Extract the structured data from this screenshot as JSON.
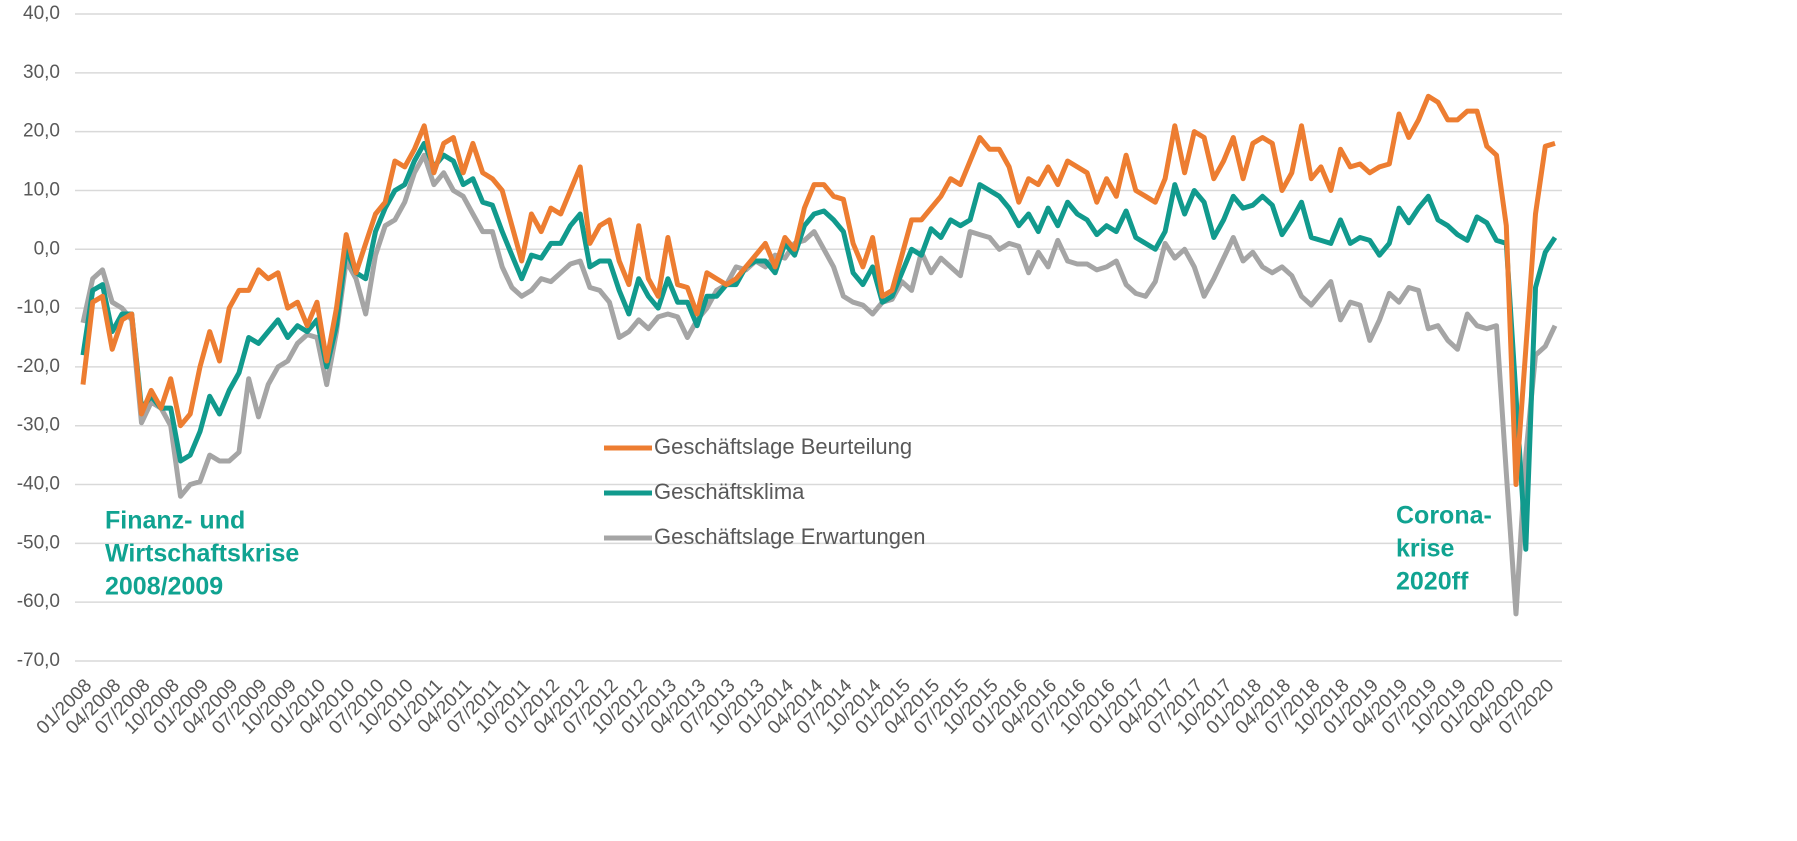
{
  "chart_data": {
    "type": "line",
    "categories": [
      "01/2008",
      null,
      null,
      "04/2008",
      null,
      null,
      "07/2008",
      null,
      null,
      "10/2008",
      null,
      null,
      "01/2009",
      null,
      null,
      "04/2009",
      null,
      null,
      "07/2009",
      null,
      null,
      "10/2009",
      null,
      null,
      "01/2010",
      null,
      null,
      "04/2010",
      null,
      null,
      "07/2010",
      null,
      null,
      "10/2010",
      null,
      null,
      "01/2011",
      null,
      null,
      "04/2011",
      null,
      null,
      "07/2011",
      null,
      null,
      "10/2011",
      null,
      null,
      "01/2012",
      null,
      null,
      "04/2012",
      null,
      null,
      "07/2012",
      null,
      null,
      "10/2012",
      null,
      null,
      "01/2013",
      null,
      null,
      "04/2013",
      null,
      null,
      "07/2013",
      null,
      null,
      "10/2013",
      null,
      null,
      "01/2014",
      null,
      null,
      "04/2014",
      null,
      null,
      "07/2014",
      null,
      null,
      "10/2014",
      null,
      null,
      "01/2015",
      null,
      null,
      "04/2015",
      null,
      null,
      "07/2015",
      null,
      null,
      "10/2015",
      null,
      null,
      "01/2016",
      null,
      null,
      "04/2016",
      null,
      null,
      "07/2016",
      null,
      null,
      "10/2016",
      null,
      null,
      "01/2017",
      null,
      null,
      "04/2017",
      null,
      null,
      "07/2017",
      null,
      null,
      "10/2017",
      null,
      null,
      "01/2018",
      null,
      null,
      "04/2018",
      null,
      null,
      "07/2018",
      null,
      null,
      "10/2018",
      null,
      null,
      "01/2019",
      null,
      null,
      "04/2019",
      null,
      null,
      "07/2019",
      null,
      null,
      "10/2019",
      null,
      null,
      "01/2020",
      null,
      null,
      "04/2020",
      null,
      null,
      "07/2020",
      null
    ],
    "series": [
      {
        "name": "Geschäftslage Beurteilung",
        "color": "#ed7d31",
        "values": [
          -23,
          -9,
          -8,
          -17,
          -12,
          -11,
          -28,
          -24,
          -27,
          -22,
          -30,
          -28,
          -20,
          -14,
          -19,
          -10,
          -7,
          -7,
          -3.5,
          -5,
          -4,
          -10,
          -9,
          -13,
          -9,
          -19,
          -10,
          2.5,
          -4,
          1,
          6,
          8,
          15,
          14,
          17,
          21,
          13,
          18,
          19,
          13,
          18,
          13,
          12,
          10,
          4,
          -2,
          6,
          3,
          7,
          6,
          10,
          14,
          1,
          4,
          5,
          -2,
          -6,
          4,
          -5,
          -8,
          2,
          -6,
          -6.5,
          -11,
          -4,
          -5,
          -6,
          -5,
          -3,
          -1,
          1,
          -3,
          2,
          0,
          7,
          11,
          11,
          9,
          8.5,
          1,
          -3,
          2,
          -8,
          -7,
          -1,
          5,
          5,
          7,
          9,
          12,
          11,
          15,
          19,
          17,
          17,
          14,
          8,
          12,
          11,
          14,
          11,
          15,
          14,
          13,
          8,
          12,
          9,
          16,
          10,
          9,
          8,
          12,
          21,
          13,
          20,
          19,
          12,
          15,
          19,
          12,
          18,
          19,
          18,
          10,
          13,
          21,
          12,
          14,
          10,
          17,
          14,
          14.5,
          13,
          14,
          14.5,
          23,
          19,
          22,
          26,
          25,
          22,
          22,
          23.5,
          23.5,
          17.5,
          16,
          4,
          -40,
          -17,
          6,
          17.5,
          18
        ]
      },
      {
        "name": "Geschäftsklima",
        "color": "#119a8d",
        "values": [
          -18,
          -7,
          -6,
          -14,
          -11,
          -11,
          -27,
          -25,
          -27,
          -27,
          -36,
          -35,
          -31,
          -25,
          -28,
          -24,
          -21,
          -15,
          -16,
          -14,
          -12,
          -15,
          -13,
          -14,
          -12,
          -20,
          -13,
          0,
          -4,
          -5,
          3,
          7,
          10,
          11,
          15,
          18,
          14,
          16,
          15,
          11,
          12,
          8,
          7.5,
          3,
          -1,
          -5,
          -1,
          -1.5,
          1,
          1,
          4,
          6,
          -3,
          -2,
          -2,
          -7,
          -11,
          -5,
          -8,
          -10,
          -5,
          -9,
          -9,
          -13,
          -8,
          -8,
          -6,
          -6,
          -3,
          -2,
          -2,
          -4,
          1,
          -1,
          4,
          6,
          6.5,
          5,
          3,
          -4,
          -6,
          -3,
          -9,
          -8,
          -4,
          0,
          -1,
          3.5,
          2,
          5,
          4,
          5,
          11,
          10,
          9,
          7,
          4,
          6,
          3,
          7,
          4,
          8,
          6,
          5,
          2.5,
          4,
          3,
          6.5,
          2,
          1,
          0,
          3,
          11,
          6,
          10,
          8,
          2,
          5,
          9,
          7,
          7.5,
          9,
          7.5,
          2.5,
          5,
          8,
          2,
          1.5,
          1,
          5,
          1,
          2,
          1.5,
          -1,
          1,
          7,
          4.5,
          7,
          9,
          5,
          4,
          2.5,
          1.5,
          5.5,
          4.5,
          1.5,
          1,
          -25,
          -51,
          -6.5,
          -0.5,
          2
        ]
      },
      {
        "name": "Geschäftslage Erwartungen",
        "color": "#a5a5a5",
        "values": [
          -12.5,
          -5,
          -3.5,
          -9,
          -10,
          -12,
          -29.5,
          -26,
          -27,
          -30,
          -42,
          -40,
          -39.5,
          -35,
          -36,
          -36,
          -34.5,
          -22,
          -28.5,
          -23,
          -20,
          -19,
          -16,
          -14.5,
          -15,
          -23,
          -14,
          -2,
          -5,
          -11,
          -1,
          4,
          5,
          8,
          13,
          16,
          11,
          13,
          10,
          9,
          6,
          3,
          3,
          -3,
          -6.5,
          -8,
          -7,
          -5,
          -5.5,
          -4,
          -2.5,
          -2,
          -6.5,
          -7,
          -9,
          -15,
          -14,
          -12,
          -13.5,
          -11.5,
          -11,
          -11.5,
          -15,
          -12,
          -10,
          -7,
          -6,
          -3,
          -3.5,
          -2,
          -3,
          -1,
          -1.5,
          1,
          1.5,
          3,
          0,
          -3,
          -8,
          -9,
          -9.5,
          -11,
          -9,
          -8.5,
          -5.5,
          -7,
          -0.5,
          -4,
          -1.5,
          -3,
          -4.5,
          3,
          2.5,
          2,
          0,
          1,
          0.5,
          -4,
          -0.5,
          -3,
          1.5,
          -2,
          -2.5,
          -2.5,
          -3.5,
          -3,
          -2,
          -6,
          -7.5,
          -8,
          -5.5,
          1,
          -1.5,
          0,
          -3,
          -8,
          -5,
          -1.5,
          2,
          -2,
          -0.5,
          -3,
          -4,
          -3,
          -4.5,
          -8,
          -9.5,
          -7.5,
          -5.5,
          -12,
          -9,
          -9.5,
          -15.5,
          -12,
          -7.5,
          -9,
          -6.5,
          -7,
          -13.5,
          -13,
          -15.5,
          -17,
          -11,
          -13,
          -13.5,
          -13,
          -38,
          -62,
          -35,
          -18,
          -16.5,
          -13
        ]
      }
    ],
    "ylim": [
      -70,
      40
    ],
    "yticks": [
      {
        "value": -70,
        "label": "-70,0"
      },
      {
        "value": -60,
        "label": "-60,0"
      },
      {
        "value": -50,
        "label": "-50,0"
      },
      {
        "value": -40,
        "label": "-40,0"
      },
      {
        "value": -30,
        "label": "-30,0"
      },
      {
        "value": -20,
        "label": "-20,0"
      },
      {
        "value": -10,
        "label": "-10,0"
      },
      {
        "value": 0,
        "label": "0,0"
      },
      {
        "value": 10,
        "label": "10,0"
      },
      {
        "value": 20,
        "label": "20,0"
      },
      {
        "value": 30,
        "label": "30,0"
      },
      {
        "value": 40,
        "label": "40,0"
      }
    ],
    "grid": true,
    "annotations": [
      {
        "lines": [
          "Finanz- und",
          "Wirtschaftskrise",
          "2008/2009"
        ]
      },
      {
        "lines": [
          "Corona-",
          "krise",
          "2020ff"
        ]
      }
    ]
  }
}
